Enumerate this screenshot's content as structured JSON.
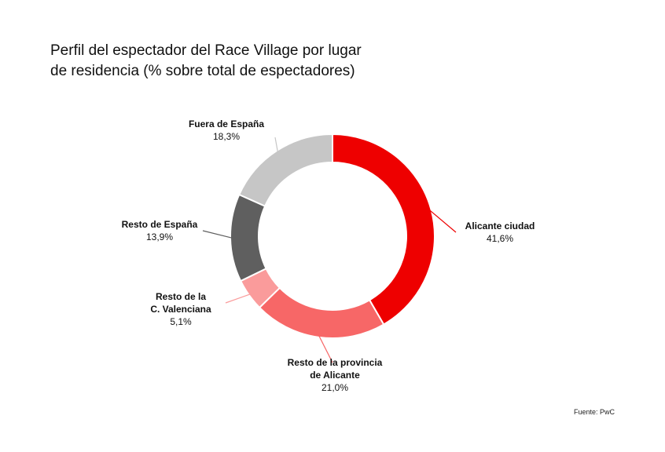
{
  "title_lines": [
    "Perfil del espectador del Race Village por lugar",
    "de residencia (% sobre total de espectadores)"
  ],
  "source": "Fuente: PwC",
  "chart_data": {
    "type": "pie",
    "variant": "donut",
    "title": "Perfil del espectador del Race Village por lugar de residencia (% sobre total de espectadores)",
    "unit": "%",
    "slices": [
      {
        "label_lines": [
          "Alicante ciudad"
        ],
        "value": 41.6,
        "value_label": "41,6%",
        "color": "#ee0000"
      },
      {
        "label_lines": [
          "Resto de la provincia",
          "de Alicante"
        ],
        "value": 21.0,
        "value_label": "21,0%",
        "color": "#f76767"
      },
      {
        "label_lines": [
          "Resto de la",
          "C. Valenciana"
        ],
        "value": 5.1,
        "value_label": "5,1%",
        "color": "#fa9b9b"
      },
      {
        "label_lines": [
          "Resto de España"
        ],
        "value": 13.9,
        "value_label": "13,9%",
        "color": "#5f5f5f"
      },
      {
        "label_lines": [
          "Fuera de España"
        ],
        "value": 18.3,
        "value_label": "18,3%",
        "color": "#c6c6c6"
      }
    ]
  }
}
